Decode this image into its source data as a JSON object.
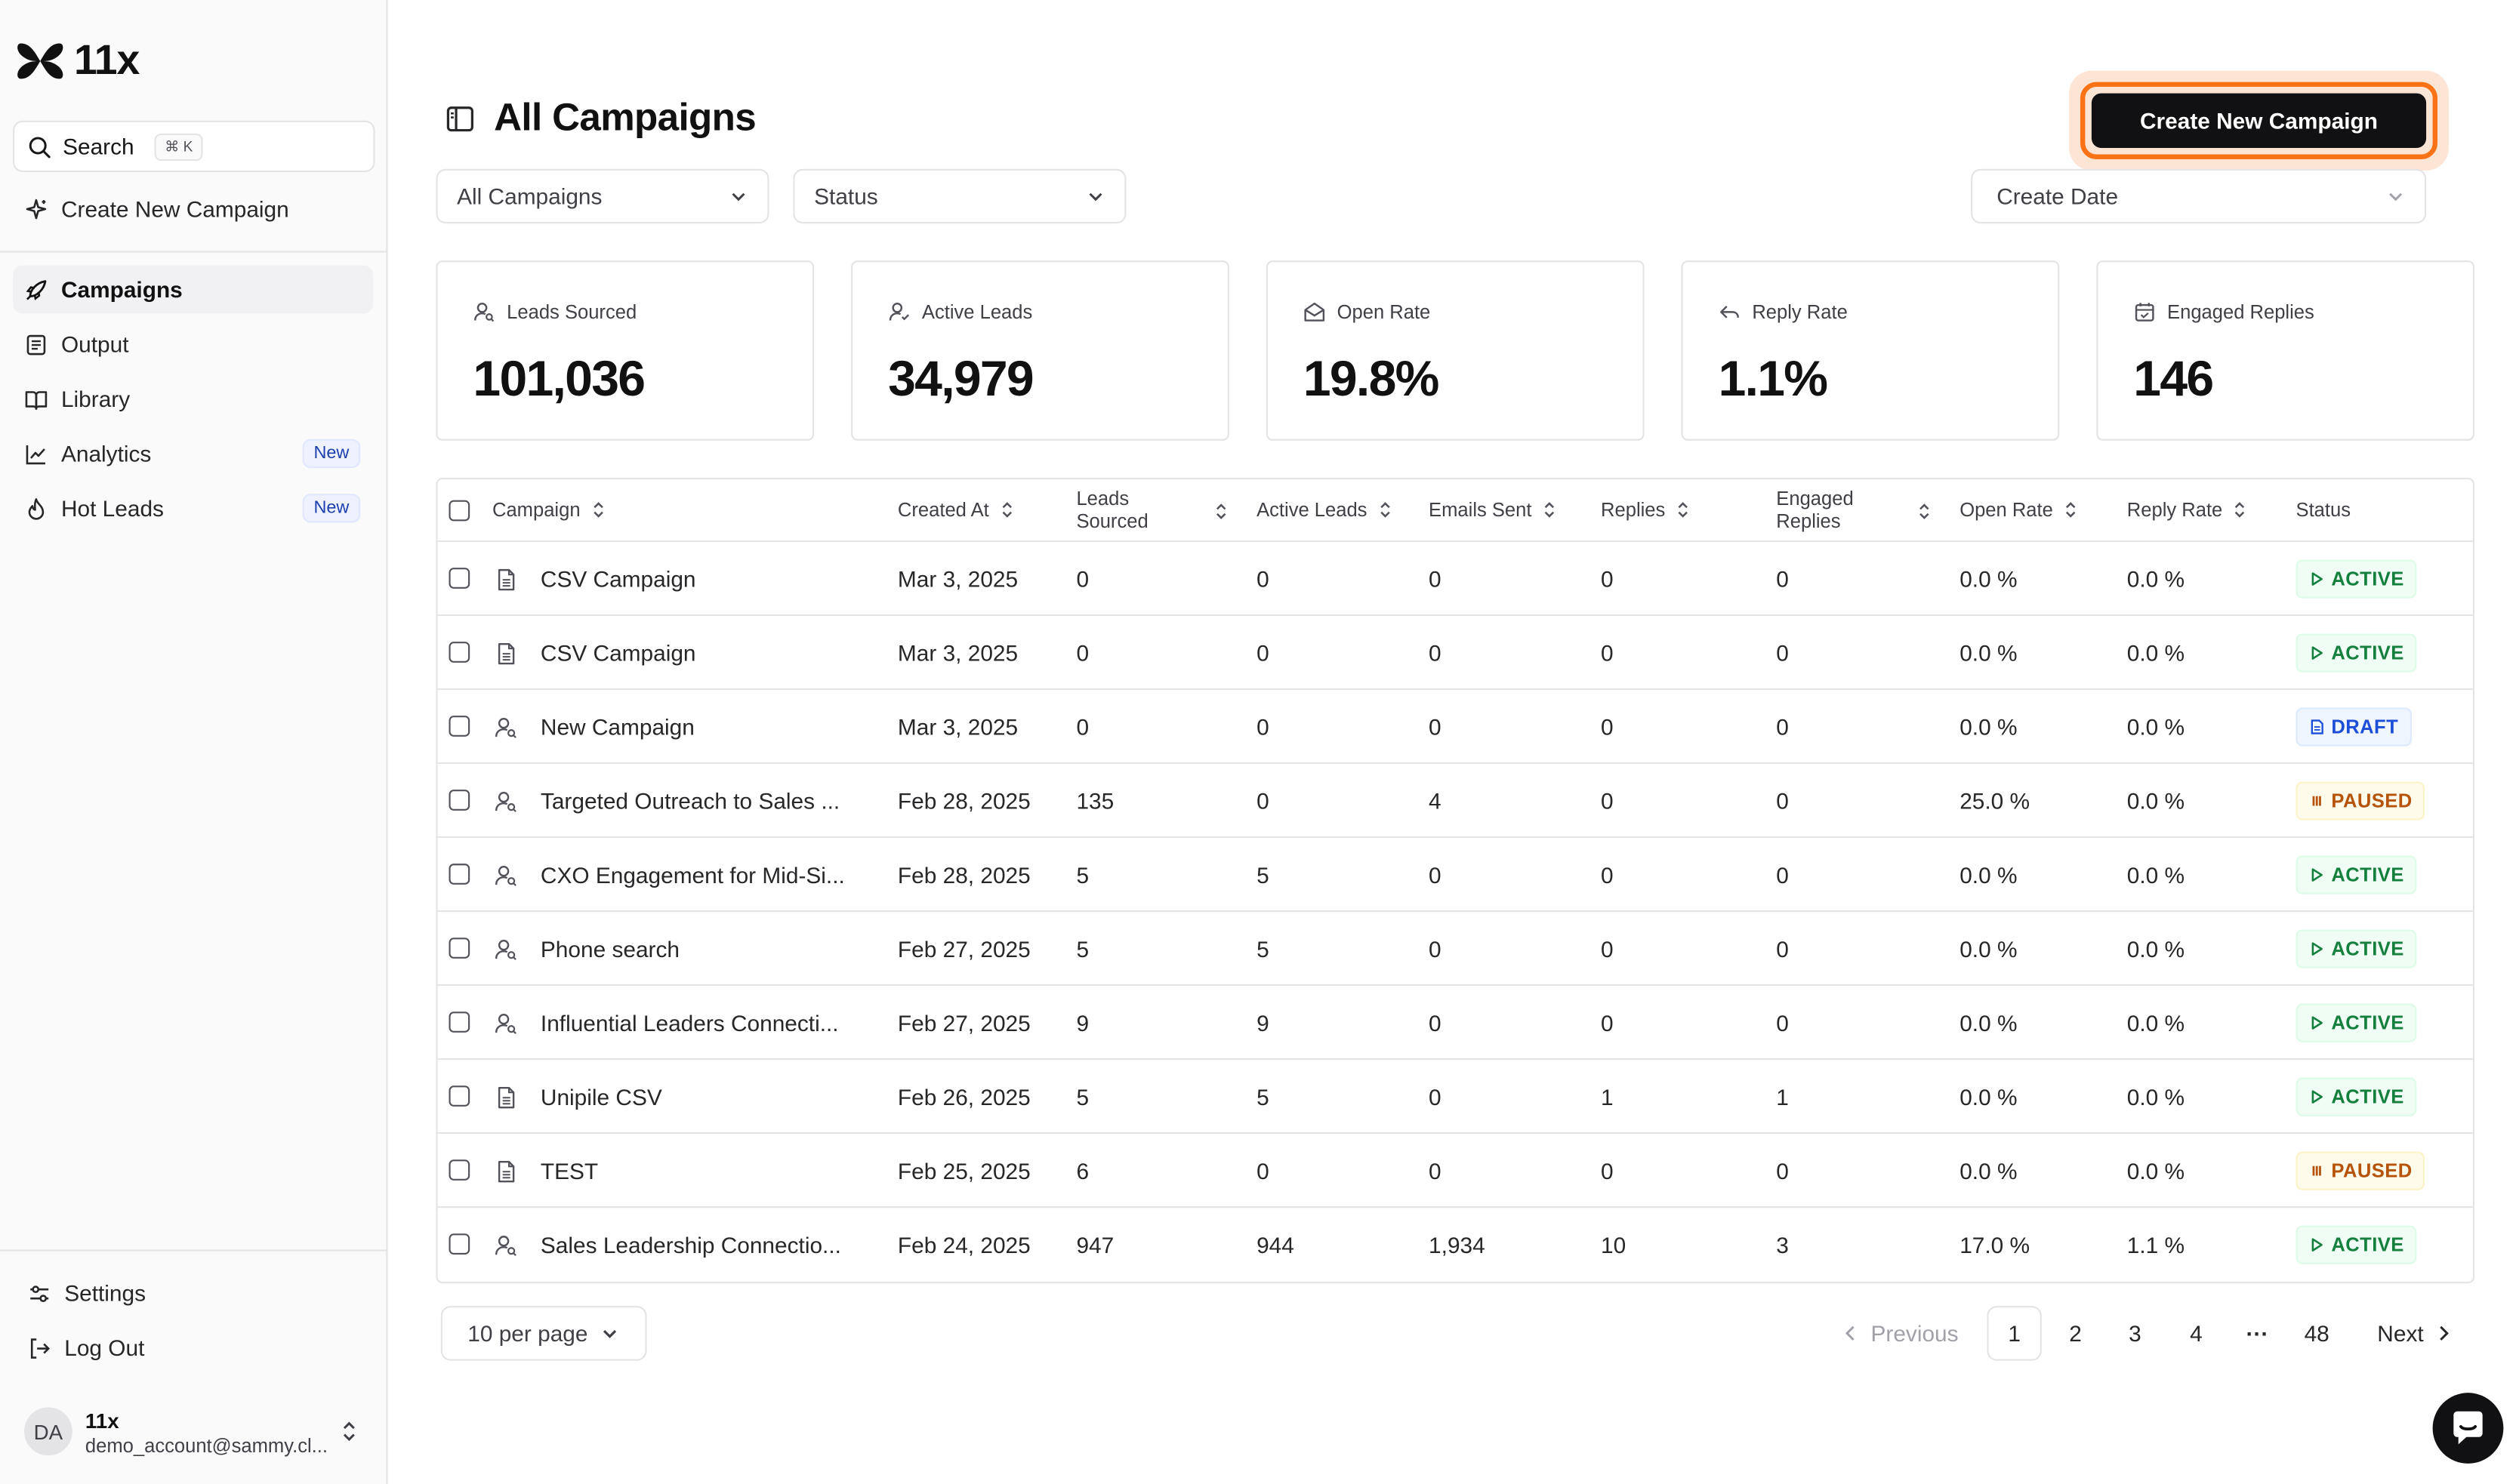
{
  "app": {
    "name": "11x"
  },
  "sidebar": {
    "search": {
      "label": "Search",
      "shortcut": "⌘ K"
    },
    "create": "Create New Campaign",
    "items": [
      {
        "label": "Campaigns",
        "icon": "rocket-icon"
      },
      {
        "label": "Output",
        "icon": "document-list-icon"
      },
      {
        "label": "Library",
        "icon": "book-icon"
      },
      {
        "label": "Analytics",
        "icon": "chart-line-icon",
        "badge": "New"
      },
      {
        "label": "Hot Leads",
        "icon": "flame-icon",
        "badge": "New"
      }
    ],
    "settings": "Settings",
    "logout": "Log Out",
    "account": {
      "initials": "DA",
      "name": "11x",
      "email": "demo_account@sammy.cl..."
    }
  },
  "header": {
    "title": "All Campaigns",
    "cta": "Create New Campaign"
  },
  "filters": {
    "campaigns": "All Campaigns",
    "status": "Status",
    "date": "Create Date"
  },
  "stats": [
    {
      "label": "Leads Sourced",
      "value": "101,036"
    },
    {
      "label": "Active Leads",
      "value": "34,979"
    },
    {
      "label": "Open Rate",
      "value": "19.8%"
    },
    {
      "label": "Reply Rate",
      "value": "1.1%"
    },
    {
      "label": "Engaged Replies",
      "value": "146"
    }
  ],
  "table": {
    "columns": [
      "Campaign",
      "Created At",
      "Leads Sourced",
      "Active Leads",
      "Emails Sent",
      "Replies",
      "Engaged Replies",
      "Open Rate",
      "Reply Rate",
      "Status"
    ],
    "columns_split": {
      "leads_a": "Leads",
      "leads_b": "Sourced",
      "engaged_a": "Engaged",
      "engaged_b": "Replies"
    },
    "rows": [
      {
        "type": "csv",
        "name": "CSV Campaign",
        "created": "Mar 3, 2025",
        "leads": "0",
        "active": "0",
        "sent": "0",
        "replies": "0",
        "engaged": "0",
        "open": "0.0 %",
        "reply": "0.0 %",
        "status": "ACTIVE"
      },
      {
        "type": "csv",
        "name": "CSV Campaign",
        "created": "Mar 3, 2025",
        "leads": "0",
        "active": "0",
        "sent": "0",
        "replies": "0",
        "engaged": "0",
        "open": "0.0 %",
        "reply": "0.0 %",
        "status": "ACTIVE"
      },
      {
        "type": "person",
        "name": "New Campaign",
        "created": "Mar 3, 2025",
        "leads": "0",
        "active": "0",
        "sent": "0",
        "replies": "0",
        "engaged": "0",
        "open": "0.0 %",
        "reply": "0.0 %",
        "status": "DRAFT"
      },
      {
        "type": "person",
        "name": "Targeted Outreach to Sales ...",
        "created": "Feb 28, 2025",
        "leads": "135",
        "active": "0",
        "sent": "4",
        "replies": "0",
        "engaged": "0",
        "open": "25.0 %",
        "reply": "0.0 %",
        "status": "PAUSED"
      },
      {
        "type": "person",
        "name": "CXO Engagement for Mid-Si...",
        "created": "Feb 28, 2025",
        "leads": "5",
        "active": "5",
        "sent": "0",
        "replies": "0",
        "engaged": "0",
        "open": "0.0 %",
        "reply": "0.0 %",
        "status": "ACTIVE"
      },
      {
        "type": "person",
        "name": "Phone search",
        "created": "Feb 27, 2025",
        "leads": "5",
        "active": "5",
        "sent": "0",
        "replies": "0",
        "engaged": "0",
        "open": "0.0 %",
        "reply": "0.0 %",
        "status": "ACTIVE"
      },
      {
        "type": "person",
        "name": "Influential Leaders Connecti...",
        "created": "Feb 27, 2025",
        "leads": "9",
        "active": "9",
        "sent": "0",
        "replies": "0",
        "engaged": "0",
        "open": "0.0 %",
        "reply": "0.0 %",
        "status": "ACTIVE"
      },
      {
        "type": "csv",
        "name": "Unipile CSV",
        "created": "Feb 26, 2025",
        "leads": "5",
        "active": "5",
        "sent": "0",
        "replies": "1",
        "engaged": "1",
        "open": "0.0 %",
        "reply": "0.0 %",
        "status": "ACTIVE"
      },
      {
        "type": "csv",
        "name": "TEST",
        "created": "Feb 25, 2025",
        "leads": "6",
        "active": "0",
        "sent": "0",
        "replies": "0",
        "engaged": "0",
        "open": "0.0 %",
        "reply": "0.0 %",
        "status": "PAUSED"
      },
      {
        "type": "person",
        "name": "Sales Leadership Connectio...",
        "created": "Feb 24, 2025",
        "leads": "947",
        "active": "944",
        "sent": "1,934",
        "replies": "10",
        "engaged": "3",
        "open": "17.0 %",
        "reply": "1.1 %",
        "status": "ACTIVE"
      }
    ]
  },
  "pagination": {
    "per_page": "10 per page",
    "previous": "Previous",
    "next": "Next",
    "pages": [
      "1",
      "2",
      "3",
      "4"
    ],
    "ellipsis": "···",
    "last": "48",
    "current": "1"
  },
  "colors": {
    "cta_bg": "#111113",
    "cta_ring": "#f97316",
    "active": "#15803d",
    "draft": "#1d4ed8",
    "paused": "#b45309"
  }
}
